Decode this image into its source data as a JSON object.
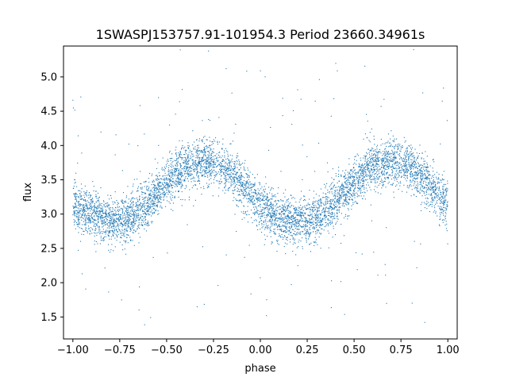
{
  "chart_data": {
    "type": "scatter",
    "title": "1SWASPJ153757.91-101954.3 Period 23660.34961s",
    "xlabel": "phase",
    "ylabel": "flux",
    "xlim": [
      -1.05,
      1.05
    ],
    "ylim": [
      1.18,
      5.45
    ],
    "x_ticks": [
      -1.0,
      -0.75,
      -0.5,
      -0.25,
      0.0,
      0.25,
      0.5,
      0.75,
      1.0
    ],
    "x_tick_labels": [
      "−1.00",
      "−0.75",
      "−0.50",
      "−0.25",
      "0.00",
      "0.25",
      "0.50",
      "0.75",
      "1.00"
    ],
    "y_ticks": [
      1.5,
      2.0,
      2.5,
      3.0,
      3.5,
      4.0,
      4.5,
      5.0
    ],
    "y_tick_labels": [
      "1.5",
      "2.0",
      "2.5",
      "3.0",
      "3.5",
      "4.0",
      "4.5",
      "5.0"
    ],
    "grid": false,
    "marker_color": "#1f77b4",
    "series": [
      {
        "x": [
          -1.0,
          -0.9,
          -0.8,
          -0.75,
          -0.7,
          -0.6,
          -0.5,
          -0.4,
          -0.3,
          -0.25,
          -0.2,
          -0.1,
          0.0,
          0.1,
          0.2,
          0.25,
          0.3,
          0.4,
          0.5,
          0.6,
          0.7,
          0.75,
          0.8,
          0.9,
          1.0
        ],
        "y": [
          3.12,
          3.0,
          2.9,
          2.88,
          2.95,
          3.18,
          3.45,
          3.68,
          3.78,
          3.76,
          3.68,
          3.45,
          3.12,
          2.95,
          2.9,
          2.88,
          2.95,
          3.18,
          3.45,
          3.68,
          3.76,
          3.75,
          3.68,
          3.45,
          3.12
        ]
      }
    ]
  }
}
